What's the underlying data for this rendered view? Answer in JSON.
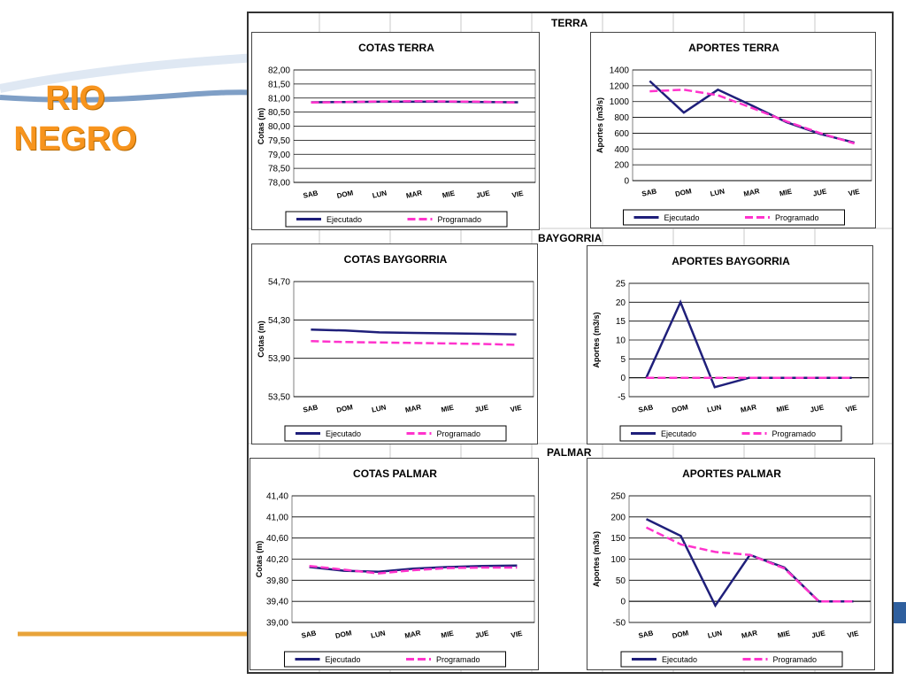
{
  "slide": {
    "title_line1": "RIO",
    "title_line2": "NEGRO",
    "colors": {
      "title": "#f7941d",
      "deco_line": "#e8a33a",
      "deco_blue": "#2f5f9e"
    }
  },
  "sections": {
    "terra": "TERRA",
    "baygorria": "BAYGORRIA",
    "palmar": "PALMAR"
  },
  "legend": {
    "executed": "Ejecutado",
    "programmed": "Programado"
  },
  "colors": {
    "executed": "#1f1f7a",
    "programmed": "#ff33cc"
  },
  "chart_data": [
    {
      "id": "cotas-terra",
      "type": "line",
      "title": "COTAS TERRA",
      "ylabel": "Cotas (m)",
      "xlabel": "",
      "categories": [
        "SAB",
        "DOM",
        "LUN",
        "MAR",
        "MIE",
        "JUE",
        "VIE"
      ],
      "ylim": [
        78.0,
        82.0
      ],
      "yticks": [
        "78,00",
        "78,50",
        "79,00",
        "79,50",
        "80,00",
        "80,50",
        "81,00",
        "81,50",
        "82,00"
      ],
      "series": [
        {
          "name": "Ejecutado",
          "values": [
            80.85,
            80.86,
            80.87,
            80.87,
            80.87,
            80.86,
            80.85
          ]
        },
        {
          "name": "Programado",
          "values": [
            80.84,
            80.86,
            80.88,
            80.89,
            80.88,
            80.87,
            80.84
          ]
        }
      ]
    },
    {
      "id": "aportes-terra",
      "type": "line",
      "title": "APORTES TERRA",
      "ylabel": "Aportes (m3/s)",
      "xlabel": "",
      "categories": [
        "SAB",
        "DOM",
        "LUN",
        "MAR",
        "MIE",
        "JUE",
        "VIE"
      ],
      "ylim": [
        0,
        1400
      ],
      "yticks": [
        "0",
        "200",
        "400",
        "600",
        "800",
        "1000",
        "1200",
        "1400"
      ],
      "series": [
        {
          "name": "Ejecutado",
          "values": [
            1260,
            860,
            1150,
            950,
            740,
            590,
            480
          ]
        },
        {
          "name": "Programado",
          "values": [
            1130,
            1150,
            1080,
            920,
            750,
            600,
            470
          ]
        }
      ]
    },
    {
      "id": "cotas-baygorria",
      "type": "line",
      "title": "COTAS BAYGORRIA",
      "ylabel": "Cotas (m)",
      "xlabel": "",
      "categories": [
        "SAB",
        "DOM",
        "LUN",
        "MAR",
        "MIE",
        "JUE",
        "VIE"
      ],
      "ylim": [
        53.5,
        54.7
      ],
      "yticks": [
        "53,50",
        "53,90",
        "54,30",
        "54,70"
      ],
      "series": [
        {
          "name": "Ejecutado",
          "values": [
            54.2,
            54.19,
            54.17,
            54.165,
            54.16,
            54.155,
            54.15
          ]
        },
        {
          "name": "Programado",
          "values": [
            54.08,
            54.07,
            54.065,
            54.06,
            54.055,
            54.05,
            54.04
          ]
        }
      ]
    },
    {
      "id": "aportes-baygorria",
      "type": "line",
      "title": "APORTES BAYGORRIA",
      "ylabel": "Aportes (m3/s)",
      "xlabel": "",
      "categories": [
        "SAB",
        "DOM",
        "LUN",
        "MAR",
        "MIE",
        "JUE",
        "VIE"
      ],
      "ylim": [
        -5,
        25
      ],
      "yticks": [
        "-5",
        "0",
        "5",
        "10",
        "15",
        "20",
        "25"
      ],
      "series": [
        {
          "name": "Ejecutado",
          "values": [
            0,
            20,
            -2.5,
            0,
            0,
            0,
            0
          ]
        },
        {
          "name": "Programado",
          "values": [
            0,
            0,
            0,
            0,
            0,
            0,
            0
          ]
        }
      ]
    },
    {
      "id": "cotas-palmar",
      "type": "line",
      "title": "COTAS PALMAR",
      "ylabel": "Cotas (m)",
      "xlabel": "",
      "categories": [
        "SAB",
        "DOM",
        "LUN",
        "MAR",
        "MIE",
        "JUE",
        "VIE"
      ],
      "ylim": [
        39.0,
        41.4
      ],
      "yticks": [
        "39,00",
        "39,40",
        "39,80",
        "40,20",
        "40,60",
        "41,00",
        "41,40"
      ],
      "series": [
        {
          "name": "Ejecutado",
          "values": [
            40.05,
            39.98,
            39.96,
            40.02,
            40.05,
            40.07,
            40.08
          ]
        },
        {
          "name": "Programado",
          "values": [
            40.07,
            40.0,
            39.93,
            39.99,
            40.03,
            40.04,
            40.04
          ]
        }
      ]
    },
    {
      "id": "aportes-palmar",
      "type": "line",
      "title": "APORTES PALMAR",
      "ylabel": "Aportes (m3/s)",
      "xlabel": "",
      "categories": [
        "SAB",
        "DOM",
        "LUN",
        "MAR",
        "MIE",
        "JUE",
        "VIE"
      ],
      "ylim": [
        -50,
        250
      ],
      "yticks": [
        "-50",
        "0",
        "50",
        "100",
        "150",
        "200",
        "250"
      ],
      "series": [
        {
          "name": "Ejecutado",
          "values": [
            195,
            155,
            -10,
            110,
            80,
            0,
            0
          ]
        },
        {
          "name": "Programado",
          "values": [
            175,
            135,
            117,
            110,
            78,
            0,
            0
          ]
        }
      ]
    }
  ]
}
